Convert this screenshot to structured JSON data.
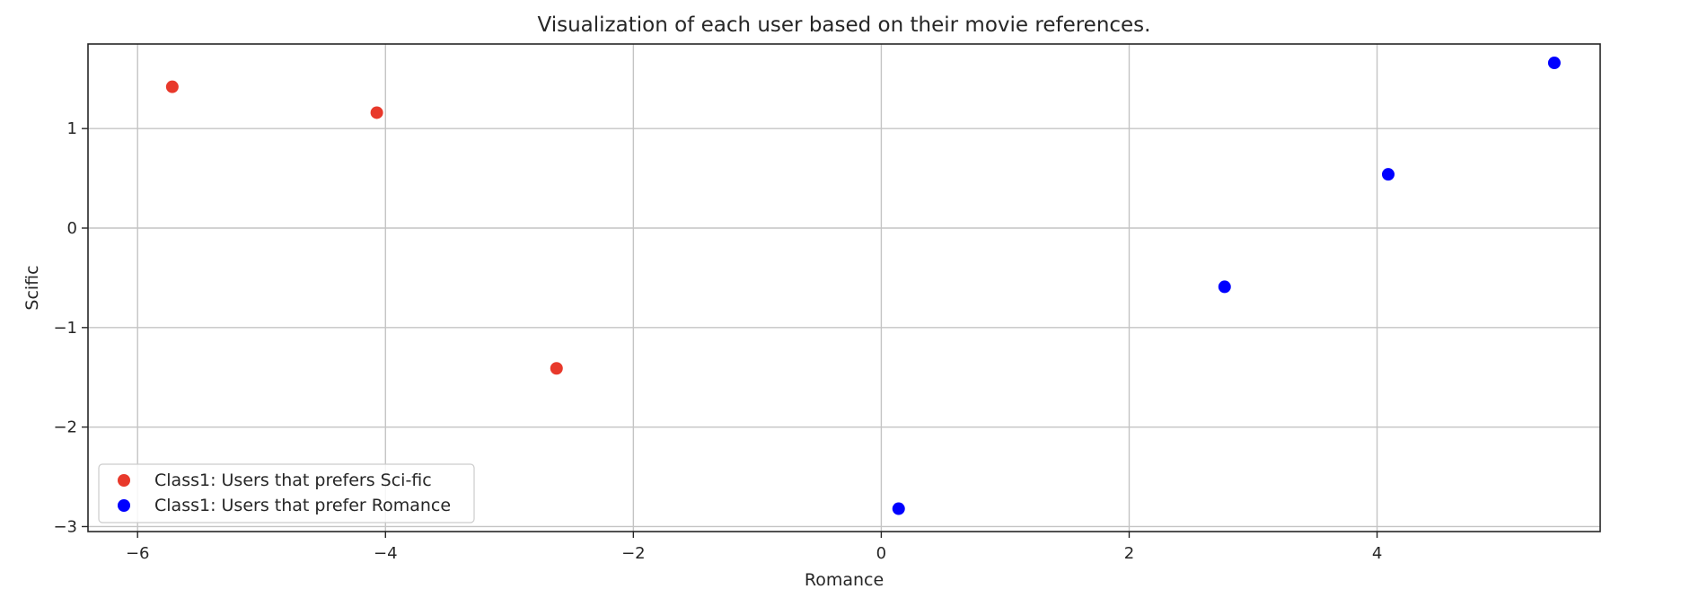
{
  "chart_data": {
    "type": "scatter",
    "title": "Visualization of each user based on their movie references.",
    "xlabel": "Romance",
    "ylabel": "Scific",
    "xlim": [
      -6.4,
      5.8
    ],
    "ylim": [
      -3.05,
      1.85
    ],
    "xticks": [
      -6,
      -4,
      -2,
      0,
      2,
      4
    ],
    "xtick_labels": [
      "−6",
      "−4",
      "−2",
      "0",
      "2",
      "4"
    ],
    "yticks": [
      1,
      0,
      -1,
      -2,
      -3
    ],
    "ytick_labels": [
      "1",
      "0",
      "−1",
      "−2",
      "−3"
    ],
    "grid": true,
    "legend_position": "lower-left",
    "series": [
      {
        "name": "Class1: Users that prefers Sci-fic",
        "color": "#e8392b",
        "x": [
          -5.72,
          -4.07,
          -2.62
        ],
        "y": [
          1.42,
          1.16,
          -1.41
        ]
      },
      {
        "name": "Class1: Users that prefer Romance",
        "color": "#0000ff",
        "x": [
          0.14,
          2.77,
          4.09,
          5.43
        ],
        "y": [
          -2.82,
          -0.59,
          0.54,
          1.66
        ]
      }
    ]
  }
}
